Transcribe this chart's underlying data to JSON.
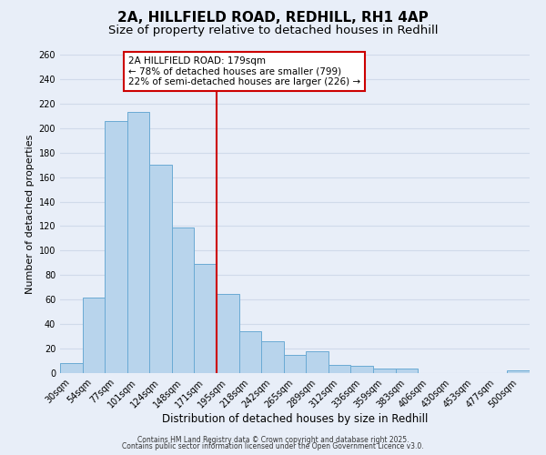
{
  "title": "2A, HILLFIELD ROAD, REDHILL, RH1 4AP",
  "subtitle": "Size of property relative to detached houses in Redhill",
  "xlabel": "Distribution of detached houses by size in Redhill",
  "ylabel": "Number of detached properties",
  "bin_labels": [
    "30sqm",
    "54sqm",
    "77sqm",
    "101sqm",
    "124sqm",
    "148sqm",
    "171sqm",
    "195sqm",
    "218sqm",
    "242sqm",
    "265sqm",
    "289sqm",
    "312sqm",
    "336sqm",
    "359sqm",
    "383sqm",
    "406sqm",
    "430sqm",
    "453sqm",
    "477sqm",
    "500sqm"
  ],
  "bar_values": [
    8,
    62,
    206,
    213,
    170,
    119,
    89,
    65,
    34,
    26,
    15,
    18,
    7,
    6,
    4,
    4,
    0,
    0,
    0,
    0,
    2
  ],
  "bar_color": "#b8d4ec",
  "bar_edge_color": "#6aaad4",
  "background_color": "#e8eef8",
  "grid_color": "#d0daea",
  "vline_color": "#cc0000",
  "vline_x": 6.5,
  "annotation_title": "2A HILLFIELD ROAD: 179sqm",
  "annotation_line1": "← 78% of detached houses are smaller (799)",
  "annotation_line2": "22% of semi-detached houses are larger (226) →",
  "annotation_box_color": "#cc0000",
  "ylim_max": 260,
  "yticks": [
    0,
    20,
    40,
    60,
    80,
    100,
    120,
    140,
    160,
    180,
    200,
    220,
    240,
    260
  ],
  "footer1": "Contains HM Land Registry data © Crown copyright and database right 2025.",
  "footer2": "Contains public sector information licensed under the Open Government Licence v3.0.",
  "title_fontsize": 11,
  "subtitle_fontsize": 9.5,
  "xlabel_fontsize": 8.5,
  "ylabel_fontsize": 8,
  "tick_fontsize": 7,
  "annotation_fontsize": 7.5,
  "footer_fontsize": 5.5
}
